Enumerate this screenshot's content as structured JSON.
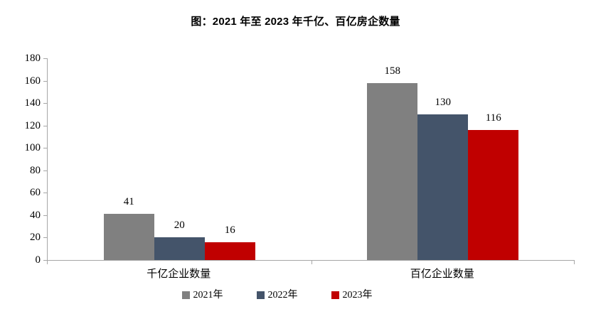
{
  "title": "图：2021 年至 2023 年千亿、百亿房企数量",
  "colors": {
    "series_2021": "#808080",
    "series_2022": "#44546A",
    "series_2023": "#C00000",
    "axis": "#A6A6A6",
    "text": "#000000",
    "background": "#FFFFFF"
  },
  "chart_data": {
    "type": "bar",
    "title": "图：2021 年至 2023 年千亿、百亿房企数量",
    "categories": [
      "千亿企业数量",
      "百亿企业数量"
    ],
    "series": [
      {
        "name": "2021年",
        "color": "#808080",
        "values": [
          41,
          158
        ]
      },
      {
        "name": "2022年",
        "color": "#44546A",
        "values": [
          20,
          130
        ]
      },
      {
        "name": "2023年",
        "color": "#C00000",
        "values": [
          16,
          116
        ]
      }
    ],
    "xlabel": "",
    "ylabel": "",
    "ylim": [
      0,
      180
    ],
    "yticks": [
      0,
      20,
      40,
      60,
      80,
      100,
      120,
      140,
      160,
      180
    ],
    "grid": false,
    "legend_position": "bottom",
    "value_labels": true
  }
}
